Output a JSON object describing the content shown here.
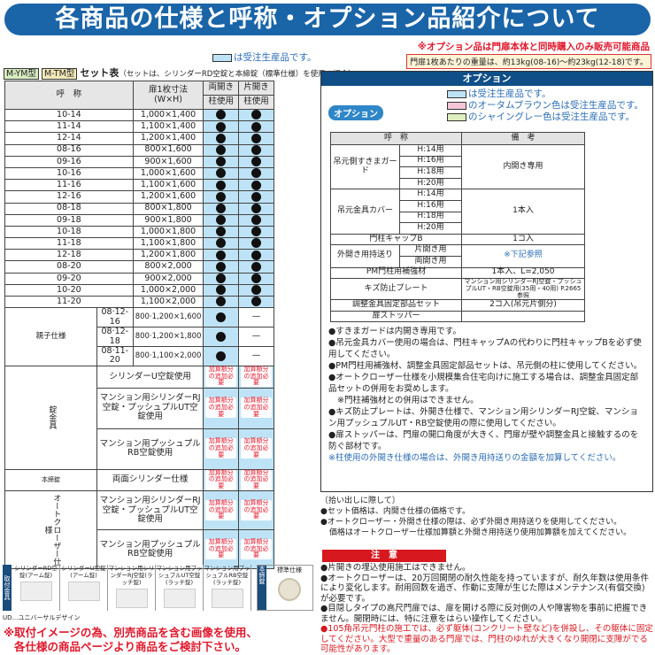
{
  "header": {
    "title": "各商品の仕様と呼称・オプション品紹介について"
  },
  "notice_red": "※オプション品は門扉本体と同時購入のみ販売可能商品",
  "weight_note": "門扉1枚あたりの重量は、約13kg(08-16)〜約23kg(12-18)です。",
  "legend_order": "は受注生産品です。",
  "set_table": {
    "tag1": "M-YM型",
    "tag2": "M-TM型",
    "title": "セット表",
    "subtitle": "（セットは、シリンダーRD空錠と本締錠（標準仕様）を使用の場合）",
    "headers": {
      "name": "呼　称",
      "size": "扉1枚寸法\n(W×H)",
      "double": "両開き",
      "single": "片開き",
      "post1": "柱使用",
      "post2": "柱使用"
    },
    "rows": [
      [
        "10-14",
        "1,000×1,400"
      ],
      [
        "11-14",
        "1,100×1,400"
      ],
      [
        "12-14",
        "1,200×1,400"
      ],
      [
        "08-16",
        "800×1,600"
      ],
      [
        "09-16",
        "900×1,600"
      ],
      [
        "10-16",
        "1,000×1,600"
      ],
      [
        "11-16",
        "1,100×1,600"
      ],
      [
        "12-16",
        "1,200×1,600"
      ],
      [
        "08-18",
        "800×1,800"
      ],
      [
        "09-18",
        "900×1,800"
      ],
      [
        "10-18",
        "1,000×1,800"
      ],
      [
        "11-18",
        "1,100×1,800"
      ],
      [
        "12-18",
        "1,200×1,800"
      ],
      [
        "08-20",
        "800×2,000"
      ],
      [
        "09-20",
        "900×2,000"
      ],
      [
        "10-20",
        "1,000×2,000"
      ],
      [
        "11-20",
        "1,100×2,000"
      ]
    ],
    "oyako_label": "親子仕様",
    "oyako_rows": [
      [
        "08·12-16",
        "800·1,200×1,600"
      ],
      [
        "08·12-18",
        "800·1,200×1,800"
      ],
      [
        "08·11-20",
        "800·1,100×2,000"
      ]
    ],
    "dash": "—",
    "lock_label": "錠金具",
    "honjime_label": "本締錠",
    "auto_label": "オートクローザー仕様",
    "lock_rows": [
      "シリンダーU空錠使用",
      "マンション用シリンダーRJ空錠・プッシュプルUT空錠使用",
      "マンション用プッシュプルRB空錠使用"
    ],
    "honjime_row": "両面シリンダー仕様",
    "auto_rows": [
      "マンション用シリンダーRJ空錠・プッシュプルUT空錠使用",
      "マンション用プッシュプルRB空錠使用"
    ],
    "extra": "加算額分の追加必要"
  },
  "options": {
    "bar": "オプション",
    "badge": "オプション",
    "legend": [
      "は受注生産品です。",
      "のオータムブラウン色は受注生産品です。",
      "のシャイングレー色は受注生産品です。"
    ],
    "legend_colors": [
      "#bfe3f6",
      "#f6c6d8",
      "#dfeebf"
    ],
    "headers": [
      "呼　称",
      "備　考"
    ],
    "guard": {
      "name": "吊元側すきまガード",
      "sizes": [
        "H:14用",
        "H:16用",
        "H:18用",
        "H:20用"
      ],
      "note": "内開き専用"
    },
    "cover": {
      "name": "吊元金具カバー",
      "sizes": [
        "H:14用",
        "H:16用",
        "H:18用",
        "H:20用"
      ],
      "note": "1本入"
    },
    "cap": {
      "name": "門柱キャップB",
      "note": "1コ入"
    },
    "mochi": {
      "name": "外開き用持送り",
      "subs": [
        "片開き用",
        "両開き用"
      ],
      "note": "※下記参照"
    },
    "pm": {
      "name": "PM門柱用補強材",
      "note": "1本入、L=2,050"
    },
    "kizu": {
      "name": "キズ防止プレート",
      "note": "マンション用シリンダーRJ空錠・プッシュプルUT・RB空錠用(35用・40用) P.2665参照"
    },
    "chosei": {
      "name": "調整金具固定部品セット",
      "note": "2コ入(吊元片側分)"
    },
    "stopper": {
      "name": "扉ストッパー"
    },
    "notes": [
      "●すきまガードは内開き専用です。",
      "●吊元金具カバー使用の場合は、門柱キャップAの代わりに門柱キャップBを必ず使用してください。",
      "●PM門柱用補強材、調整金具固定部品セットは、吊元側の柱に使用してください。",
      "●オートクローザー仕様を小規模集合住宅向けに施工する場合は、調整金具固定部品セットの併用をお奨めします。",
      "※門柱補強材との併用はできません。",
      "●キズ防止プレートは、外開き仕様で、マンション用シリンダーRJ空錠、マンション用プッシュプルUT・RB空錠使用の際に使用してください。",
      "●扉ストッパーは、門扉の開口角度が大きく、門扉が壁や調整金具と接触するのを防ぐ部材です。"
    ],
    "note_blue": "※柱使用の外開き仕様の場合は、外開き用持送りの金額を加算してください。"
  },
  "pickup": {
    "title": "〔拾い出しに際して〕",
    "items": [
      "●セット価格は、内開き仕様の価格です。",
      "●オートクローザー・外開き仕様の際は、必ず外開き用持送りを使用してください。",
      "価格はオートクローザー仕様加算額と外開き用持送り使用加算額を加えてください。"
    ]
  },
  "caution": {
    "title": "注　意",
    "items": [
      "●片開きの埋込使用施工はできません。",
      "●オートクローザーは、20万回開閉の耐久性能を持っていますが、耐久年数は使用条件により変化します。耐用回数を過ぎ、作動に支障が生じた際はメンテナンス(有償交換)が必要です。",
      "●目隠しタイプの高尺門扉では、扉を開ける際に反対側の人や障害物を事前に把握できません。開閉時には、特に注意をはらい操作してください。"
    ],
    "red": "●105角吊元門柱の施工では、必ず躯体(コンクリート壁など)を併設し、その躯体に固定してください。大型で重量のある門扉では、門柱のゆれが大きくなり開閉に支障がでる可能性があります。"
  },
  "hardware": {
    "side_label": "取付金具",
    "items": [
      "シリンダーRD空錠(アーム錠)",
      "シリンダーU空錠(アーム錠)",
      "マンション用シリンダーRJ空錠(ラッチ錠)",
      "マンション用プッシュプルUT空錠(ラッチ錠)",
      "マンション用プッシュプルRB空錠(ラッチ錠)"
    ],
    "ud": "UD…ユニバーサルデザイン",
    "honjime_side": "本締錠",
    "honjime_item": "標準仕様"
  },
  "bottom_note": [
    "※取付イメージの為、別売商品を含む画像を使用、",
    "各仕様の商品ページより商品をご検討下さい。"
  ]
}
